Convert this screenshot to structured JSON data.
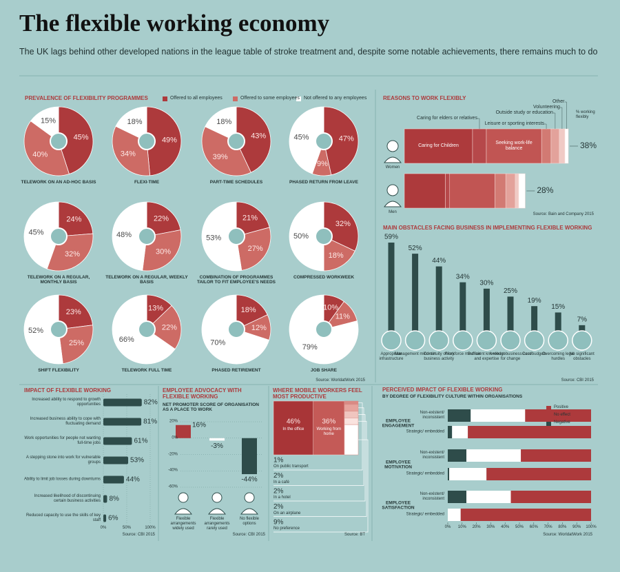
{
  "header": {
    "title": "The flexible working economy",
    "subtitle": "The UK lags behind other developed nations in the league table of stroke treatment and, despite some notable achievements, there remains much to do"
  },
  "chart_data": [
    {
      "type": "pie",
      "title": "PREVALENCE OF FLEXIBILITY PROGRAMMES",
      "categories": [
        "TELEWORK ON AN AD-HOC BASIS",
        "FLEXI-TIME",
        "PART-TIME SCHEDULES",
        "PHASED RETURN FROM LEAVE",
        "TELEWORK ON A REGULAR, MONTHLY BASIS",
        "TELEWORK ON A REGULAR, WEEKLY BASIS",
        "COMBINATION OF PROGRAMMES TAILOR TO FIT EMPLOYEE'S NEEDS",
        "COMPRESSED WORKWEEK",
        "SHIFT FLEXIBILITY",
        "TELEWORK FULL TIME",
        "PHASED RETIREMENT",
        "JOB SHARE"
      ],
      "series": [
        {
          "name": "Offered to all employees",
          "color": "#ad3a3c",
          "values": [
            45,
            49,
            43,
            47,
            24,
            22,
            21,
            32,
            23,
            13,
            18,
            10
          ],
          "value_labels": [
            "45%",
            "49%",
            "43%",
            "47%",
            "24%",
            "22%",
            "21%",
            "32%",
            "23%",
            "13%",
            "18%",
            "10%"
          ]
        },
        {
          "name": "Offered to some employees",
          "color": "#cd6b65",
          "values": [
            40,
            34,
            39,
            9,
            32,
            30,
            27,
            18,
            25,
            22,
            12,
            11
          ],
          "value_labels": [
            "40%",
            "34%",
            "39%",
            "9%",
            "32%",
            "30%",
            "27%",
            "18%",
            "25%",
            "22%",
            "12%",
            "11%"
          ]
        },
        {
          "name": "Not offered to any employees",
          "color": "#ffffff",
          "values": [
            15,
            18,
            18,
            45,
            45,
            48,
            53,
            50,
            52,
            66,
            70,
            79
          ],
          "value_labels": [
            "15%",
            "18%",
            "18%",
            "45%",
            "45%",
            "48%",
            "53%",
            "50%",
            "52%",
            "66%",
            "70%",
            "79%"
          ]
        }
      ],
      "source": "Source: WorldatWork 2015"
    },
    {
      "type": "stacked-bar",
      "orientation": "horizontal",
      "title": "REASONS TO WORK FLEXIBLY",
      "categories": [
        "Women",
        "Men"
      ],
      "series": [
        {
          "name": "Caring for Children",
          "color": "#ad3a3c",
          "values": [
            15.8,
            9.5
          ]
        },
        {
          "name": "Caring for elders or relatives",
          "color": "#b6484a",
          "values": [
            3.2,
            1
          ]
        },
        {
          "name": "Seeking work-life balance",
          "color": "#c15553",
          "values": [
            12.8,
            10.5
          ]
        },
        {
          "name": "Leisure or sporting interests",
          "color": "#d27a73",
          "values": [
            2.2,
            2.5
          ]
        },
        {
          "name": "Outside study or education",
          "color": "#e3a29b",
          "values": [
            1.9,
            2.2
          ]
        },
        {
          "name": "Volunteering",
          "color": "#f0cac5",
          "values": [
            1.3,
            0.8
          ]
        },
        {
          "name": "Other",
          "color": "#ffffff",
          "values": [
            0.8,
            1.5
          ]
        }
      ],
      "totals": {
        "name": "% working flexibly",
        "values": [
          38,
          28
        ],
        "value_labels": [
          "38%",
          "28%"
        ]
      },
      "source": "Source: Bain and Company 2015"
    },
    {
      "type": "bar",
      "title": "MAIN OBSTACLES FACING BUSINESS IN IMPLEMENTING FLEXIBLE WORKING",
      "categories": [
        "Appropriate infrastructure",
        "Management mind-set",
        "Continuity of key business activity",
        "Workforce mind-set",
        "Sufficient knowledge and expertise",
        "A robust business case for change",
        "Cost/budgets",
        "Overcoming legal hurdles",
        "No significant obstacles"
      ],
      "values": [
        59,
        52,
        44,
        34,
        30,
        25,
        19,
        15,
        7
      ],
      "value_labels": [
        "59%",
        "52%",
        "44%",
        "34%",
        "30%",
        "25%",
        "19%",
        "15%",
        "7%"
      ],
      "color": "#2e4c4a",
      "source": "Source: CBI 2015"
    },
    {
      "type": "bar",
      "orientation": "horizontal",
      "title": "IMPACT OF FLEXIBLE WORKING",
      "categories": [
        "Increased ability to respond to growth opportunities",
        "Increased business ability to cope with fluctuating demand",
        "Work opportunities for people not wanting full-time jobs",
        "A stepping stone into work for vulnerable groups",
        "Ability to limit job losses during downturns",
        "Increased likelihood of discontinuing certain business activities",
        "Reduced capacity to use the skills of key staff"
      ],
      "values": [
        82,
        81,
        61,
        53,
        44,
        8,
        6
      ],
      "value_labels": [
        "82%",
        "81%",
        "61%",
        "53%",
        "44%",
        "8%",
        "6%"
      ],
      "color": "#2e4c4a",
      "xlim": [
        0,
        100
      ],
      "xticks": [
        {
          "value": 0,
          "label": "0%"
        },
        {
          "value": 50,
          "label": "50%"
        },
        {
          "value": 100,
          "label": "100%"
        }
      ],
      "source": "Source: CBI 2015"
    },
    {
      "type": "bar",
      "title": "EMPLOYEE ADVOCACY WITH FLEXIBLE WORKING",
      "subtitle": "NET PROMOTER SCORE OF ORGANISATION AS A PLACE TO WORK",
      "categories": [
        "Flexible arrangements widely used",
        "Flexible arrangements rarely used",
        "No flexible options"
      ],
      "values": [
        16,
        -3,
        -44
      ],
      "value_labels": [
        "16%",
        "-3%",
        "-44%"
      ],
      "colors": [
        "#ad3a3c",
        "#ffffff",
        "#2e4c4a"
      ],
      "ylim": [
        -60,
        20
      ],
      "yticks": [
        {
          "value": 20,
          "label": "20%"
        },
        {
          "value": 0,
          "label": "0%"
        },
        {
          "value": -20,
          "label": "-20%"
        },
        {
          "value": -40,
          "label": "-40%"
        },
        {
          "value": -60,
          "label": "-60%"
        }
      ],
      "source": "Source: CBI 2015"
    },
    {
      "type": "treemap",
      "title": "WHERE MOBILE WORKERS FEEL MOST PRODUCTIVE",
      "categories": [
        "In the office",
        "Working from home",
        "On public transport",
        "In a café",
        "In a hotel",
        "On an airplane",
        "No preference"
      ],
      "values": [
        46,
        36,
        1,
        2,
        2,
        2,
        9
      ],
      "value_labels": [
        "46%",
        "36%",
        "1%",
        "2%",
        "2%",
        "2%",
        "9%"
      ],
      "colors": [
        "#a83537",
        "#c45a57",
        "#d98a84",
        "#e6a49d",
        "#f0c5bf",
        "#fae3df",
        "#ffffff"
      ],
      "source": "Source: BT"
    },
    {
      "type": "stacked-bar",
      "orientation": "horizontal",
      "title": "PERCEIVED IMPACT OF FLEXIBLE WORKING",
      "subtitle": "BY DEGREE OF FLEXIBILITY CULTURE WITHIN ORGANISATIONS",
      "groups": [
        "EMPLOYEE ENGAGEMENT",
        "EMPLOYEE MOTIVATION",
        "EMPLOYEE SATISFACTION"
      ],
      "categories": [
        "Non-existent/ inconsistent",
        "Strategic/ embedded",
        "Non-existent/ inconsistent",
        "Strategic/ embedded",
        "Non-existent/ inconsistent",
        "Strategic/ embedded"
      ],
      "series": [
        {
          "name": "Negative",
          "color": "#2e4c4a",
          "values": [
            16,
            3,
            13,
            1,
            13,
            0
          ]
        },
        {
          "name": "No effect",
          "color": "#ffffff",
          "values": [
            38,
            11,
            38,
            26,
            31,
            9
          ]
        },
        {
          "name": "Positive",
          "color": "#ad3a3c",
          "values": [
            46,
            86,
            49,
            73,
            56,
            91
          ]
        }
      ],
      "xlim": [
        0,
        100
      ],
      "xticks": [
        {
          "value": 0,
          "label": "0%"
        },
        {
          "value": 10,
          "label": "10%"
        },
        {
          "value": 20,
          "label": "20%"
        },
        {
          "value": 30,
          "label": "30%"
        },
        {
          "value": 40,
          "label": "40%"
        },
        {
          "value": 50,
          "label": "50%"
        },
        {
          "value": 60,
          "label": "60%"
        },
        {
          "value": 70,
          "label": "70%"
        },
        {
          "value": 80,
          "label": "80%"
        },
        {
          "value": 90,
          "label": "90%"
        },
        {
          "value": 100,
          "label": "100%"
        }
      ],
      "source": "Source: WorldatWork 2015"
    }
  ]
}
